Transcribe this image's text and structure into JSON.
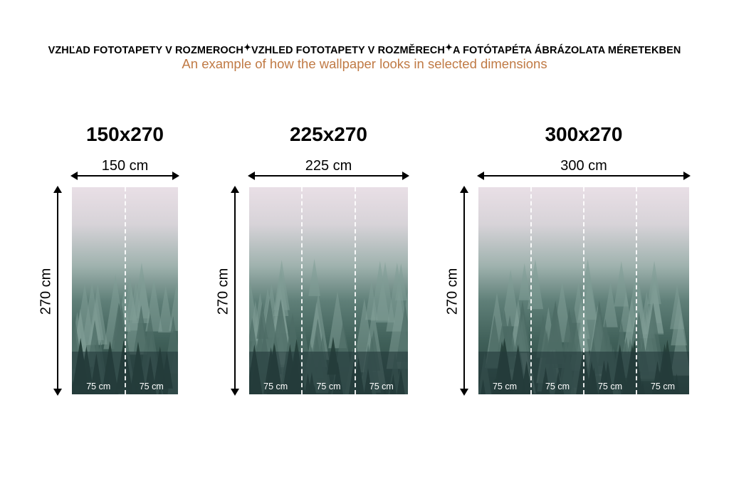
{
  "header": {
    "title_parts": [
      "VZHĽAD FOTOTAPETY V ROZMEROCH",
      "VZHLED FOTOTAPETY V ROZMĚRECH",
      "A FOTÓTAPÉTA ÁBRÁZOLATA MÉRETEKBEN"
    ],
    "separator": "✦",
    "subtitle": "An example of how the wallpaper looks in selected dimensions",
    "subtitle_color": "#c07a45"
  },
  "variants": [
    {
      "title": "150x270",
      "width_label": "150 cm",
      "height_label": "270 cm",
      "panels": [
        "75 cm",
        "75 cm"
      ]
    },
    {
      "title": "225x270",
      "width_label": "225 cm",
      "height_label": "270 cm",
      "panels": [
        "75 cm",
        "75 cm",
        "75 cm"
      ]
    },
    {
      "title": "300x270",
      "width_label": "300 cm",
      "height_label": "270 cm",
      "panels": [
        "75 cm",
        "75 cm",
        "75 cm",
        "75 cm"
      ]
    }
  ]
}
